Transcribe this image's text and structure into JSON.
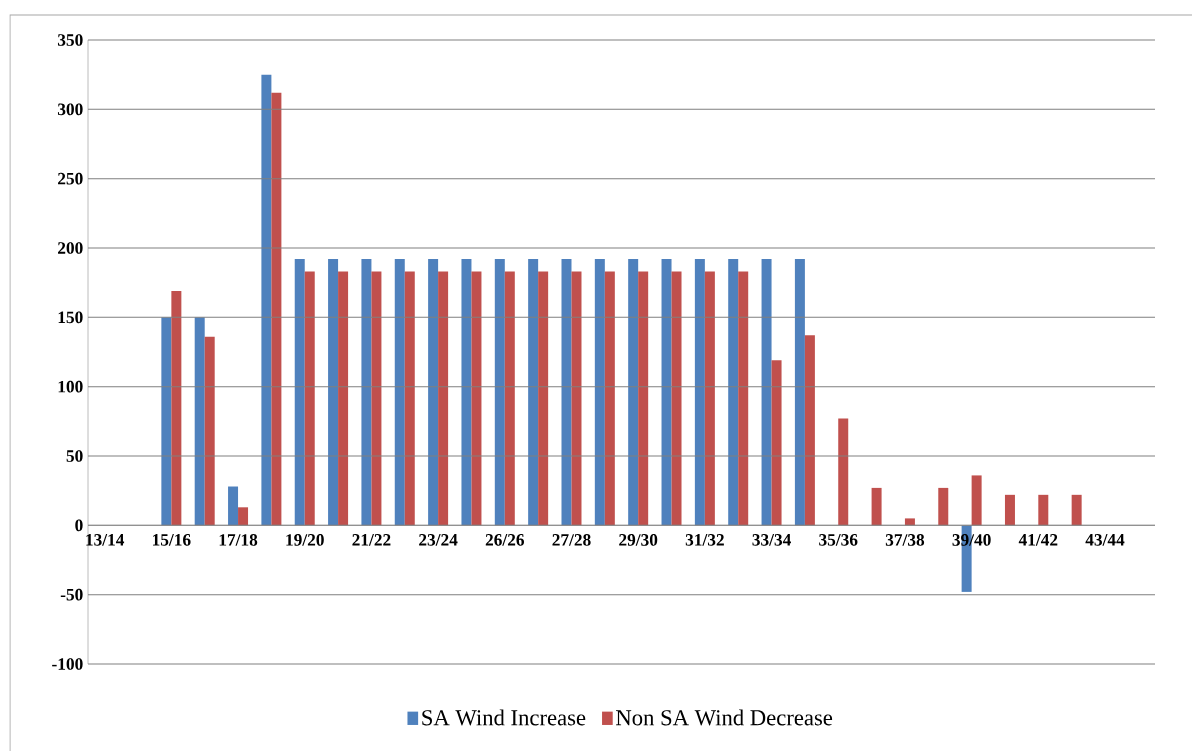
{
  "chart_data": {
    "type": "bar",
    "categories": [
      "13/14",
      null,
      "15/16",
      null,
      "17/18",
      null,
      "19/20",
      null,
      "21/22",
      null,
      "23/24",
      null,
      "26/26",
      null,
      "27/28",
      null,
      "29/30",
      null,
      "31/32",
      null,
      "33/34",
      null,
      "35/36",
      null,
      "37/38",
      null,
      "39/40",
      null,
      "41/42",
      null,
      "43/44",
      null
    ],
    "series": [
      {
        "name": "SA Wind Increase",
        "color": "#4f81bd",
        "values": [
          null,
          null,
          150,
          150,
          28,
          325,
          192,
          192,
          192,
          192,
          192,
          192,
          192,
          192,
          192,
          192,
          192,
          192,
          192,
          192,
          192,
          192,
          null,
          null,
          null,
          null,
          -48,
          null,
          null,
          null,
          null,
          null
        ]
      },
      {
        "name": "Non SA Wind Decrease",
        "color": "#c0504d",
        "values": [
          null,
          null,
          169,
          136,
          13,
          312,
          183,
          183,
          183,
          183,
          183,
          183,
          183,
          183,
          183,
          183,
          183,
          183,
          183,
          183,
          119,
          137,
          77,
          27,
          5,
          27,
          36,
          22,
          22,
          22,
          null,
          null
        ]
      }
    ],
    "ylim": [
      -100,
      350
    ],
    "yticks": [
      -100,
      -50,
      0,
      50,
      100,
      150,
      200,
      250,
      300,
      350
    ],
    "grid": "y",
    "legend": "bottom"
  }
}
